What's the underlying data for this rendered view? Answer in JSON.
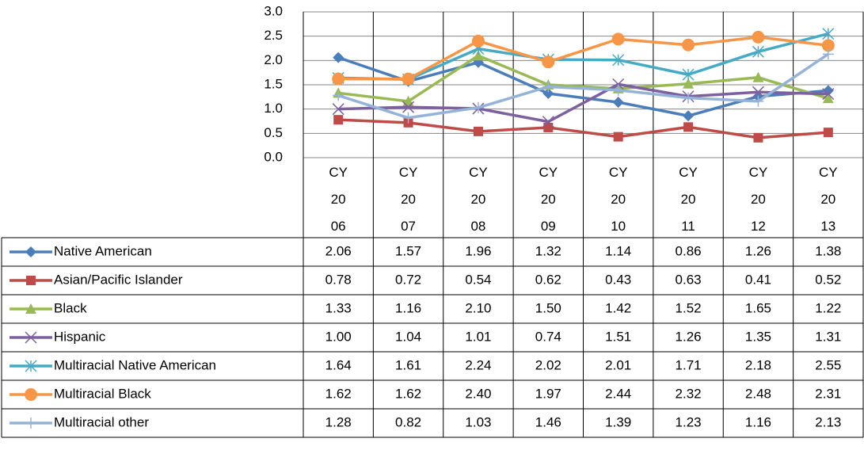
{
  "chart_data": {
    "type": "line",
    "categories": [
      "CY 2006",
      "CY 2007",
      "CY 2008",
      "CY 2009",
      "CY 2010",
      "CY 2011",
      "CY 2012",
      "CY 2013"
    ],
    "ylim": [
      0,
      3
    ],
    "yticks": [
      {
        "value": 0,
        "label": "0.0"
      },
      {
        "value": 0.5,
        "label": "0.5"
      },
      {
        "value": 1,
        "label": "1.0"
      },
      {
        "value": 1.5,
        "label": "1.5"
      },
      {
        "value": 2,
        "label": "2.0"
      },
      {
        "value": 2.5,
        "label": "2.5"
      },
      {
        "value": 3,
        "label": "3.0"
      }
    ],
    "grid": true,
    "series": [
      {
        "name": "Native American",
        "color": "#4a7ebb",
        "marker": "diamond",
        "values": [
          2.06,
          1.57,
          1.96,
          1.32,
          1.14,
          0.86,
          1.26,
          1.38
        ],
        "value_labels": [
          "2.06",
          "1.57",
          "1.96",
          "1.32",
          "1.14",
          "0.86",
          "1.26",
          "1.38"
        ]
      },
      {
        "name": "Asian/Pacific Islander",
        "color": "#be4b48",
        "marker": "square",
        "values": [
          0.78,
          0.72,
          0.54,
          0.62,
          0.43,
          0.63,
          0.41,
          0.52
        ],
        "value_labels": [
          "0.78",
          "0.72",
          "0.54",
          "0.62",
          "0.43",
          "0.63",
          "0.41",
          "0.52"
        ]
      },
      {
        "name": "Black",
        "color": "#98b954",
        "marker": "triangle",
        "values": [
          1.33,
          1.16,
          2.1,
          1.5,
          1.42,
          1.52,
          1.65,
          1.22
        ],
        "value_labels": [
          "1.33",
          "1.16",
          "2.10",
          "1.50",
          "1.42",
          "1.52",
          "1.65",
          "1.22"
        ]
      },
      {
        "name": "Hispanic",
        "color": "#7d60a0",
        "marker": "x",
        "values": [
          1.0,
          1.04,
          1.01,
          0.74,
          1.51,
          1.26,
          1.35,
          1.31
        ],
        "value_labels": [
          "1.00",
          "1.04",
          "1.01",
          "0.74",
          "1.51",
          "1.26",
          "1.35",
          "1.31"
        ]
      },
      {
        "name": "Multiracial Native American",
        "color": "#46aac5",
        "marker": "star",
        "values": [
          1.64,
          1.61,
          2.24,
          2.02,
          2.01,
          1.71,
          2.18,
          2.55
        ],
        "value_labels": [
          "1.64",
          "1.61",
          "2.24",
          "2.02",
          "2.01",
          "1.71",
          "2.18",
          "2.55"
        ]
      },
      {
        "name": "Multiracial Black",
        "color": "#f79646",
        "marker": "circle",
        "values": [
          1.62,
          1.62,
          2.4,
          1.97,
          2.44,
          2.32,
          2.48,
          2.31
        ],
        "value_labels": [
          "1.62",
          "1.62",
          "2.40",
          "1.97",
          "2.44",
          "2.32",
          "2.48",
          "2.31"
        ]
      },
      {
        "name": "Multiracial other",
        "color": "#95b3d7",
        "marker": "plus",
        "values": [
          1.28,
          0.82,
          1.03,
          1.46,
          1.39,
          1.23,
          1.16,
          2.13
        ],
        "value_labels": [
          "1.28",
          "0.82",
          "1.03",
          "1.46",
          "1.39",
          "1.23",
          "1.16",
          "2.13"
        ]
      }
    ]
  }
}
